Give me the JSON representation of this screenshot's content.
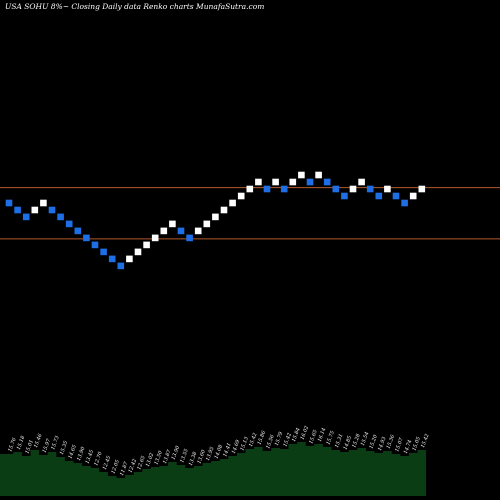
{
  "title": "USA SOHU 8%~ Closing Daily data Renko charts MunafaSutra.com",
  "colors": {
    "background": "#000000",
    "up_brick": "#ffffff",
    "down_brick": "#1e6fe6",
    "line": "#b3592a",
    "volume_area": "#0b3d14",
    "volume_label": "#ffffff"
  },
  "chart_data": {
    "type": "renko",
    "reference_levels": [
      15.56,
      13.36
    ],
    "bricks": [
      {
        "dir": "down",
        "level": 14.9
      },
      {
        "dir": "down",
        "level": 14.6
      },
      {
        "dir": "down",
        "level": 14.3
      },
      {
        "dir": "up",
        "level": 14.6
      },
      {
        "dir": "up",
        "level": 14.9
      },
      {
        "dir": "down",
        "level": 14.6
      },
      {
        "dir": "down",
        "level": 14.3
      },
      {
        "dir": "down",
        "level": 14.0
      },
      {
        "dir": "down",
        "level": 13.7
      },
      {
        "dir": "down",
        "level": 13.4
      },
      {
        "dir": "down",
        "level": 13.1
      },
      {
        "dir": "down",
        "level": 12.8
      },
      {
        "dir": "down",
        "level": 12.5
      },
      {
        "dir": "down",
        "level": 12.2
      },
      {
        "dir": "up",
        "level": 12.5
      },
      {
        "dir": "up",
        "level": 12.8
      },
      {
        "dir": "up",
        "level": 13.1
      },
      {
        "dir": "up",
        "level": 13.4
      },
      {
        "dir": "up",
        "level": 13.7
      },
      {
        "dir": "up",
        "level": 14.0
      },
      {
        "dir": "down",
        "level": 13.7
      },
      {
        "dir": "down",
        "level": 13.4
      },
      {
        "dir": "up",
        "level": 13.7
      },
      {
        "dir": "up",
        "level": 14.0
      },
      {
        "dir": "up",
        "level": 14.3
      },
      {
        "dir": "up",
        "level": 14.6
      },
      {
        "dir": "up",
        "level": 14.9
      },
      {
        "dir": "up",
        "level": 15.2
      },
      {
        "dir": "up",
        "level": 15.5
      },
      {
        "dir": "up",
        "level": 15.8
      },
      {
        "dir": "down",
        "level": 15.5
      },
      {
        "dir": "up",
        "level": 15.8
      },
      {
        "dir": "down",
        "level": 15.5
      },
      {
        "dir": "up",
        "level": 15.8
      },
      {
        "dir": "up",
        "level": 16.1
      },
      {
        "dir": "down",
        "level": 15.8
      },
      {
        "dir": "up",
        "level": 16.1
      },
      {
        "dir": "down",
        "level": 15.8
      },
      {
        "dir": "down",
        "level": 15.5
      },
      {
        "dir": "down",
        "level": 15.2
      },
      {
        "dir": "up",
        "level": 15.5
      },
      {
        "dir": "up",
        "level": 15.8
      },
      {
        "dir": "down",
        "level": 15.5
      },
      {
        "dir": "down",
        "level": 15.2
      },
      {
        "dir": "up",
        "level": 15.5
      },
      {
        "dir": "down",
        "level": 15.2
      },
      {
        "dir": "down",
        "level": 14.9
      },
      {
        "dir": "up",
        "level": 15.2
      },
      {
        "dir": "up",
        "level": 15.5
      }
    ],
    "volume_profile": [
      42,
      44,
      40,
      46,
      41,
      44,
      39,
      35,
      33,
      30,
      28,
      24,
      20,
      18,
      21,
      24,
      27,
      29,
      30,
      34,
      31,
      28,
      30,
      33,
      35,
      37,
      40,
      43,
      47,
      49,
      45,
      48,
      47,
      52,
      54,
      50,
      52,
      49,
      46,
      44,
      46,
      48,
      45,
      43,
      45,
      42,
      40,
      43,
      46
    ],
    "brick_labels": [
      "15.76",
      "15.18",
      "15.01",
      "15.46",
      "15.97",
      "15.73",
      "15.35",
      "14.65",
      "13.90",
      "13.45",
      "12.70",
      "12.45",
      "12.05",
      "11.87",
      "12.42",
      "12.65",
      "13.02",
      "13.50",
      "13.87",
      "13.90",
      "13.55",
      "13.38",
      "13.60",
      "13.95",
      "14.08",
      "14.41",
      "14.69",
      "15.13",
      "15.42",
      "15.86",
      "15.56",
      "15.79",
      "15.42",
      "15.84",
      "16.02",
      "15.65",
      "16.14",
      "15.75",
      "15.31",
      "14.85",
      "15.28",
      "15.54",
      "15.20",
      "14.93",
      "15.36",
      "15.07",
      "14.74",
      "15.05",
      "15.42"
    ]
  }
}
